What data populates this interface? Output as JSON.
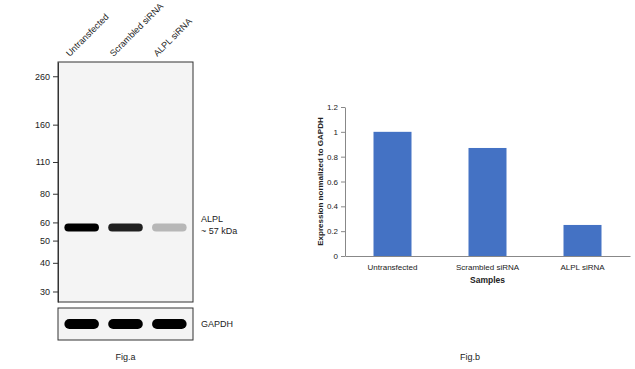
{
  "chart_data": [
    {
      "type": "blot",
      "caption": "Fig.a",
      "categories": [
        "Untransfected",
        "Scrambled siRNA",
        "ALPL siRNA"
      ],
      "log": "y",
      "ylim": [
        27,
        300
      ],
      "yticks": [
        260,
        160,
        110,
        80,
        60,
        50,
        40,
        30
      ],
      "series": [
        {
          "name": "ALPL",
          "label": "~ 57 kDa",
          "values": [
            57,
            57,
            57
          ],
          "intensity": [
            1,
            0.87,
            0.25
          ]
        }
      ],
      "loading_control": {
        "name": "GAPDH",
        "intensity": [
          1,
          1,
          1
        ]
      }
    },
    {
      "type": "bar",
      "caption": "Fig.b",
      "categories": [
        "Untransfected",
        "Scrambled siRNA",
        "ALPL siRNA"
      ],
      "values": [
        1,
        0.87,
        0.25
      ],
      "color": "#4472c4",
      "ylim": [
        0,
        1.2
      ],
      "yticks": [
        0,
        0.2,
        0.4,
        0.6,
        0.8,
        1,
        1.2
      ],
      "x_label": "Samples",
      "y_label": "Expression normalized to GAPDH",
      "grid": false
    }
  ]
}
